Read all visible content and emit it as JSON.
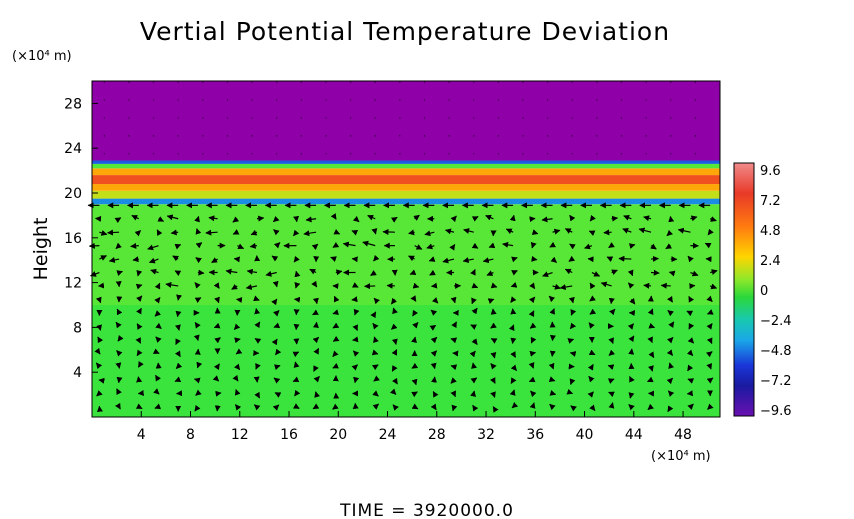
{
  "chart_data": {
    "type": "heatmap",
    "title": "Vertial Potential Temperature Deviation",
    "xlabel": "",
    "ylabel": "Height",
    "x_unit": "(×10⁴ m)",
    "y_unit": "(×10⁴ m)",
    "x_ticks": [
      "4",
      "8",
      "12",
      "16",
      "20",
      "24",
      "28",
      "32",
      "36",
      "40",
      "44",
      "48"
    ],
    "y_ticks": [
      "4",
      "8",
      "12",
      "16",
      "20",
      "24",
      "28"
    ],
    "xlim": [
      0,
      51
    ],
    "ylim": [
      0,
      30
    ],
    "grid": false,
    "colorbar": {
      "labels": [
        "9.6",
        "7.2",
        "4.8",
        "2.4",
        "0",
        "−2.4",
        "−4.8",
        "−7.2",
        "−9.6"
      ],
      "range": [
        -9.6,
        9.6
      ]
    },
    "bands": [
      {
        "y0": 0,
        "y1": 10,
        "value": 1.0
      },
      {
        "y0": 10,
        "y1": 19,
        "value": 1.6
      },
      {
        "y0": 19,
        "y1": 19.5,
        "value": -3.0
      },
      {
        "y0": 19.5,
        "y1": 20.2,
        "value": 3.5
      },
      {
        "y0": 20.2,
        "y1": 20.8,
        "value": 6.0
      },
      {
        "y0": 20.8,
        "y1": 21.6,
        "value": 8.0
      },
      {
        "y0": 21.6,
        "y1": 22.2,
        "value": 6.0
      },
      {
        "y0": 22.2,
        "y1": 22.6,
        "value": 1.5
      },
      {
        "y0": 22.6,
        "y1": 22.9,
        "value": -4.0
      },
      {
        "y0": 22.9,
        "y1": 30,
        "value": -9.6
      }
    ],
    "colors": {
      "upper_region": "#9000a8",
      "lower_region": "#3ee63e",
      "mid_region": "#66e839",
      "hot": "#e83a28",
      "cold": "#1a36d8"
    }
  },
  "time_label": "TIME  =  3920000.0"
}
